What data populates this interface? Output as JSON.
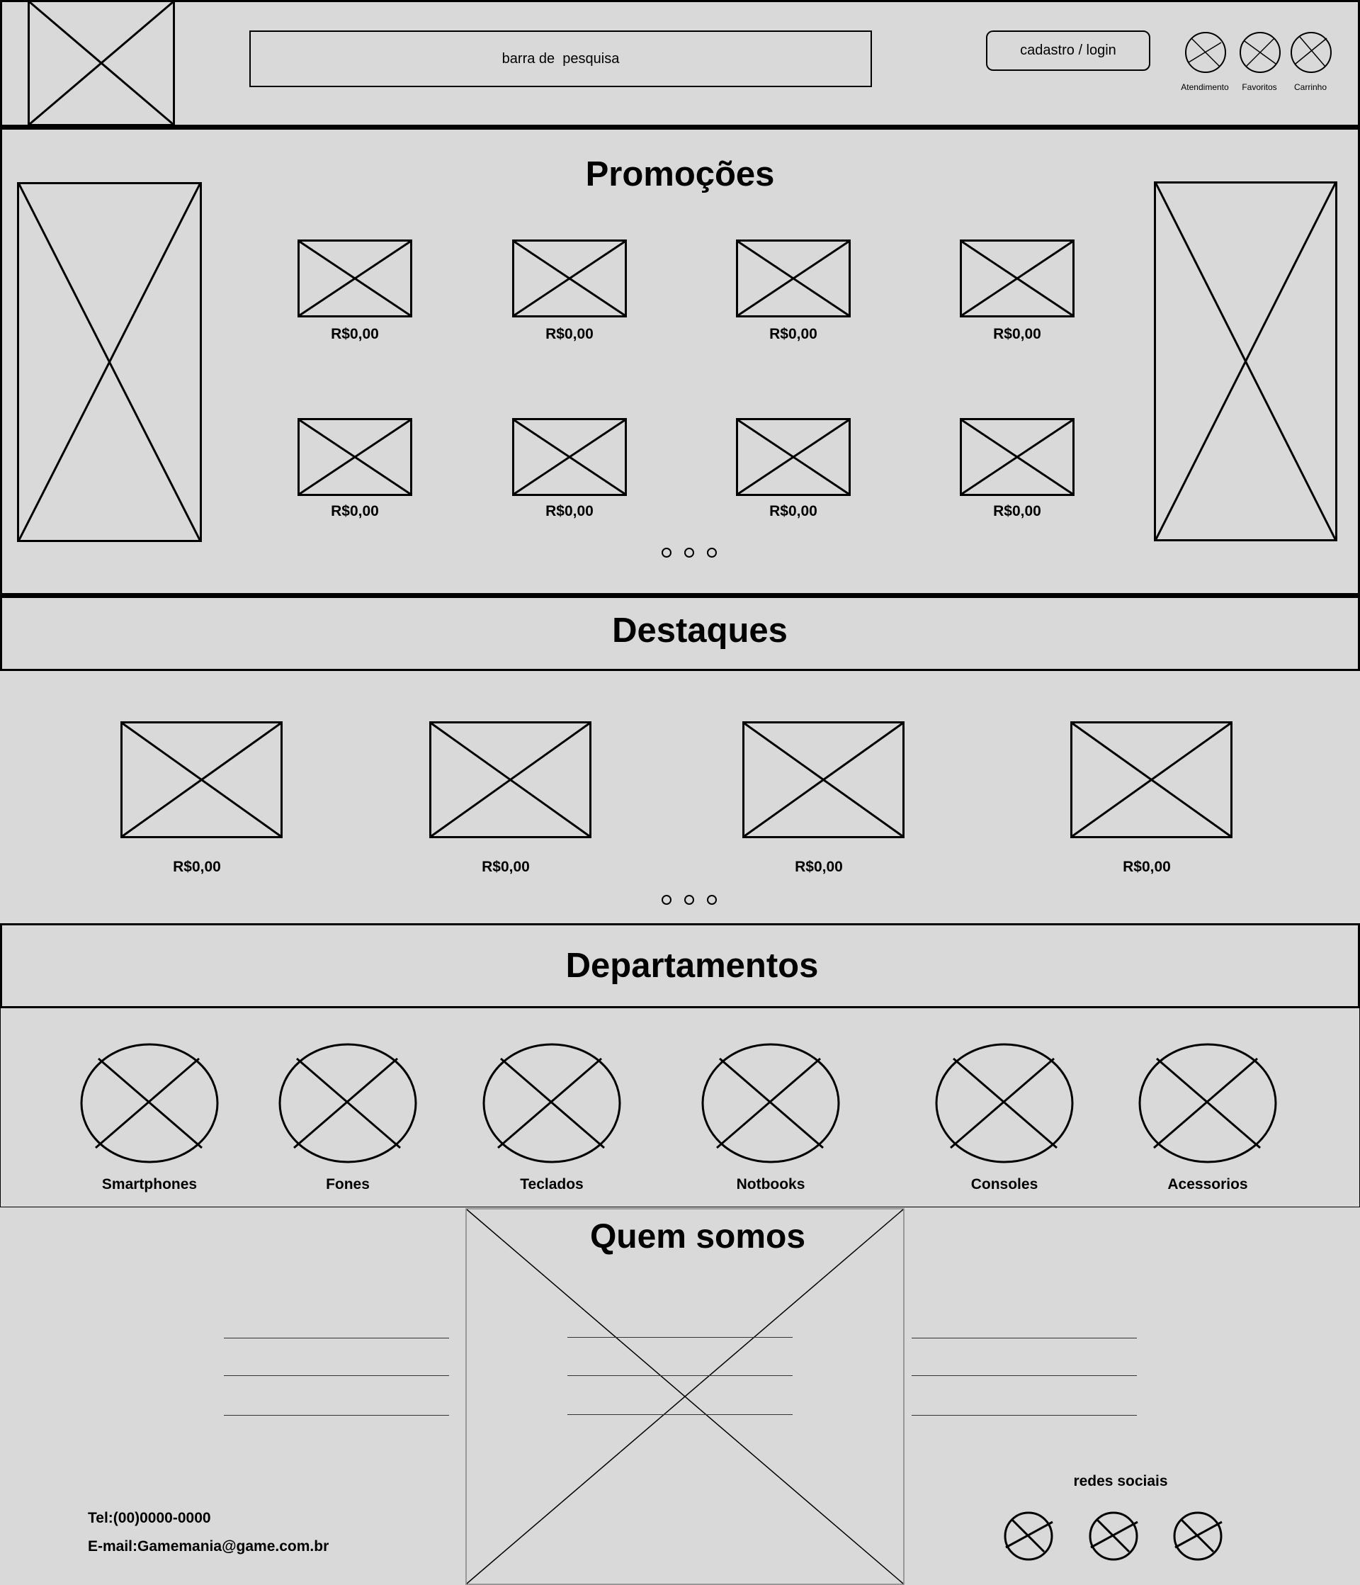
{
  "header": {
    "search_placeholder": "barra de  pesquisa",
    "login_button": "cadastro / login",
    "icons": [
      {
        "label": "Atendimento",
        "icon": "atendimento-icon"
      },
      {
        "label": "Favoritos",
        "icon": "favoritos-icon"
      },
      {
        "label": "Carrinho",
        "icon": "carrinho-icon"
      }
    ]
  },
  "promocoes": {
    "title": "Promoções",
    "products": [
      {
        "price": "R$0,00"
      },
      {
        "price": "R$0,00"
      },
      {
        "price": "R$0,00"
      },
      {
        "price": "R$0,00"
      },
      {
        "price": "R$0,00"
      },
      {
        "price": "R$0,00"
      },
      {
        "price": "R$0,00"
      },
      {
        "price": "R$0,00"
      }
    ]
  },
  "destaques": {
    "title": "Destaques",
    "products": [
      {
        "price": "R$0,00"
      },
      {
        "price": "R$0,00"
      },
      {
        "price": "R$0,00"
      },
      {
        "price": "R$0,00"
      }
    ]
  },
  "departamentos": {
    "title": "Departamentos",
    "items": [
      {
        "label": "Smartphones"
      },
      {
        "label": "Fones"
      },
      {
        "label": "Teclados"
      },
      {
        "label": "Notbooks"
      },
      {
        "label": "Consoles"
      },
      {
        "label": "Acessorios"
      }
    ]
  },
  "quem_somos": {
    "title": "Quem somos",
    "tel": "Tel:(00)0000-0000",
    "email": "E-mail:Gamemania@game.com.br",
    "social_title": "redes sociais"
  }
}
